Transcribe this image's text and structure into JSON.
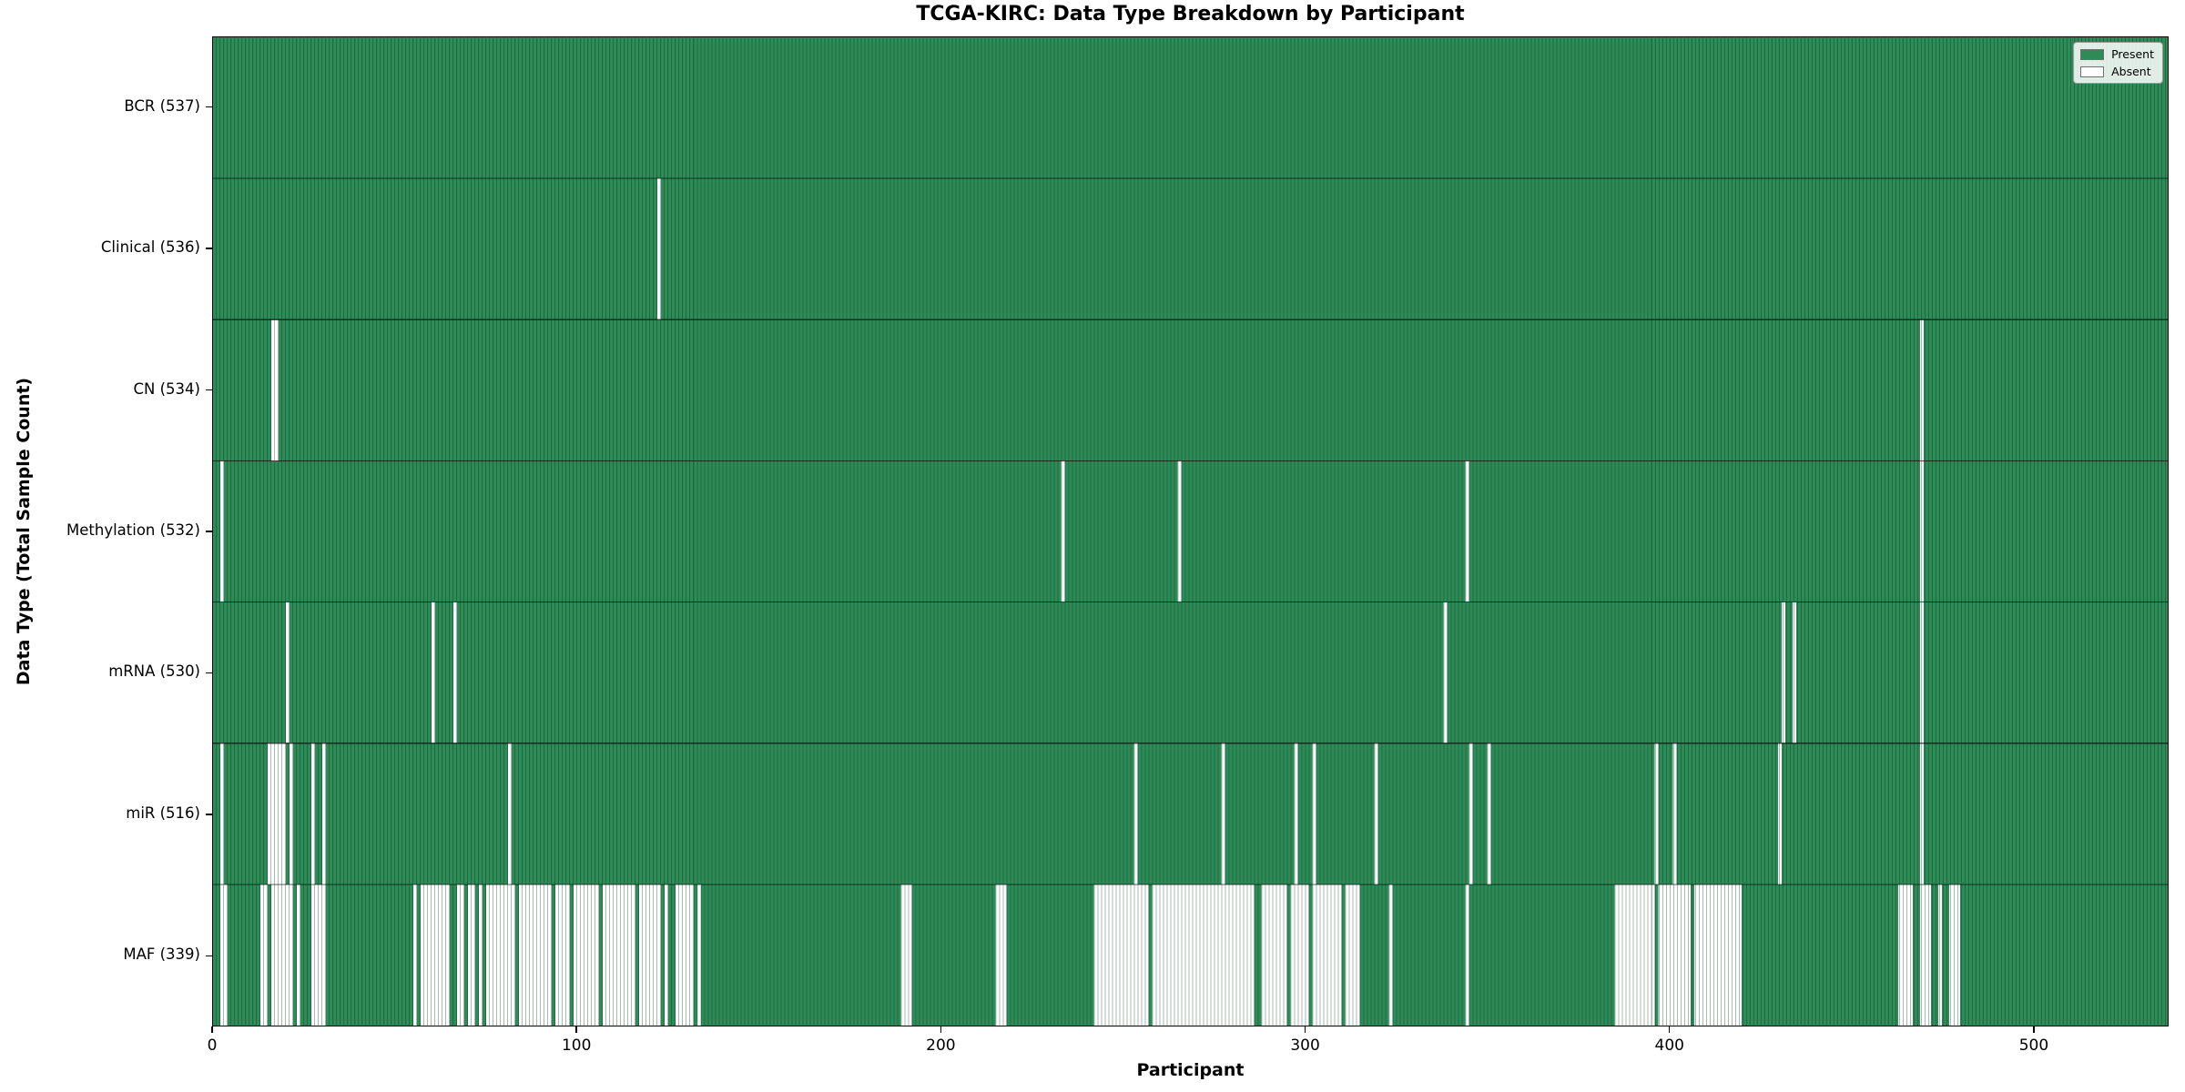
{
  "title": "TCGA-KIRC: Data Type Breakdown by Participant",
  "axes": {
    "xlabel": "Participant",
    "ylabel": "Data Type (Total Sample Count)",
    "x_tick_labels": [
      "0",
      "100",
      "200",
      "300",
      "400",
      "500"
    ]
  },
  "legend": {
    "present_label": "Present",
    "absent_label": "Absent"
  },
  "colors": {
    "present": "#2e8b57",
    "present_edge": "#20714a",
    "absent": "#ffffff",
    "absent_edge": "#c4c4c4",
    "row_separator": "rgba(0,0,0,0.65)"
  },
  "chart_data": {
    "type": "heatmap",
    "title": "TCGA-KIRC: Data Type Breakdown by Participant",
    "xlabel": "Participant",
    "ylabel": "Data Type (Total Sample Count)",
    "x_ticks": [
      0,
      100,
      200,
      300,
      400,
      500
    ],
    "x_range": [
      0,
      537
    ],
    "n_participants": 537,
    "grid": false,
    "legend_position": "upper right",
    "legend_entries": [
      "Present",
      "Absent"
    ],
    "rows": [
      {
        "label": "BCR (537)",
        "data_type": "BCR",
        "present_count": 537,
        "absent_ranges": []
      },
      {
        "label": "Clinical (536)",
        "data_type": "Clinical",
        "present_count": 536,
        "absent_ranges": [
          [
            122,
            122
          ]
        ]
      },
      {
        "label": "CN (534)",
        "data_type": "CN",
        "present_count": 534,
        "absent_ranges": [
          [
            16,
            17
          ],
          [
            469,
            469
          ]
        ]
      },
      {
        "label": "Methylation (532)",
        "data_type": "Methylation",
        "present_count": 532,
        "absent_ranges": [
          [
            2,
            2
          ],
          [
            233,
            233
          ],
          [
            265,
            265
          ],
          [
            344,
            344
          ],
          [
            469,
            469
          ]
        ]
      },
      {
        "label": "mRNA (530)",
        "data_type": "mRNA",
        "present_count": 530,
        "absent_ranges": [
          [
            20,
            20
          ],
          [
            60,
            60
          ],
          [
            66,
            66
          ],
          [
            338,
            338
          ],
          [
            431,
            431
          ],
          [
            434,
            434
          ],
          [
            469,
            469
          ]
        ]
      },
      {
        "label": "miR (516)",
        "data_type": "miR",
        "present_count": 516,
        "absent_ranges": [
          [
            2,
            2
          ],
          [
            15,
            19
          ],
          [
            21,
            21
          ],
          [
            27,
            27
          ],
          [
            30,
            30
          ],
          [
            81,
            81
          ],
          [
            253,
            253
          ],
          [
            277,
            277
          ],
          [
            297,
            297
          ],
          [
            302,
            302
          ],
          [
            319,
            319
          ],
          [
            345,
            345
          ],
          [
            350,
            350
          ],
          [
            396,
            396
          ],
          [
            401,
            401
          ],
          [
            430,
            430
          ],
          [
            469,
            469
          ]
        ]
      },
      {
        "label": "MAF (339)",
        "data_type": "MAF",
        "present_count": 339,
        "absent_ranges": [
          [
            2,
            3
          ],
          [
            13,
            14
          ],
          [
            16,
            17
          ],
          [
            18,
            19
          ],
          [
            20,
            21
          ],
          [
            23,
            23
          ],
          [
            27,
            28
          ],
          [
            29,
            30
          ],
          [
            55,
            55
          ],
          [
            57,
            64
          ],
          [
            67,
            68
          ],
          [
            70,
            71
          ],
          [
            73,
            73
          ],
          [
            75,
            82
          ],
          [
            84,
            92
          ],
          [
            94,
            97
          ],
          [
            99,
            105
          ],
          [
            107,
            111
          ],
          [
            112,
            115
          ],
          [
            117,
            122
          ],
          [
            124,
            124
          ],
          [
            127,
            131
          ],
          [
            133,
            133
          ],
          [
            189,
            191
          ],
          [
            215,
            217
          ],
          [
            242,
            256
          ],
          [
            258,
            285
          ],
          [
            288,
            294
          ],
          [
            296,
            300
          ],
          [
            302,
            309
          ],
          [
            311,
            314
          ],
          [
            323,
            323
          ],
          [
            344,
            344
          ],
          [
            385,
            395
          ],
          [
            397,
            405
          ],
          [
            407,
            419
          ],
          [
            463,
            466
          ],
          [
            469,
            471
          ],
          [
            474,
            474
          ],
          [
            477,
            479
          ]
        ]
      }
    ]
  }
}
